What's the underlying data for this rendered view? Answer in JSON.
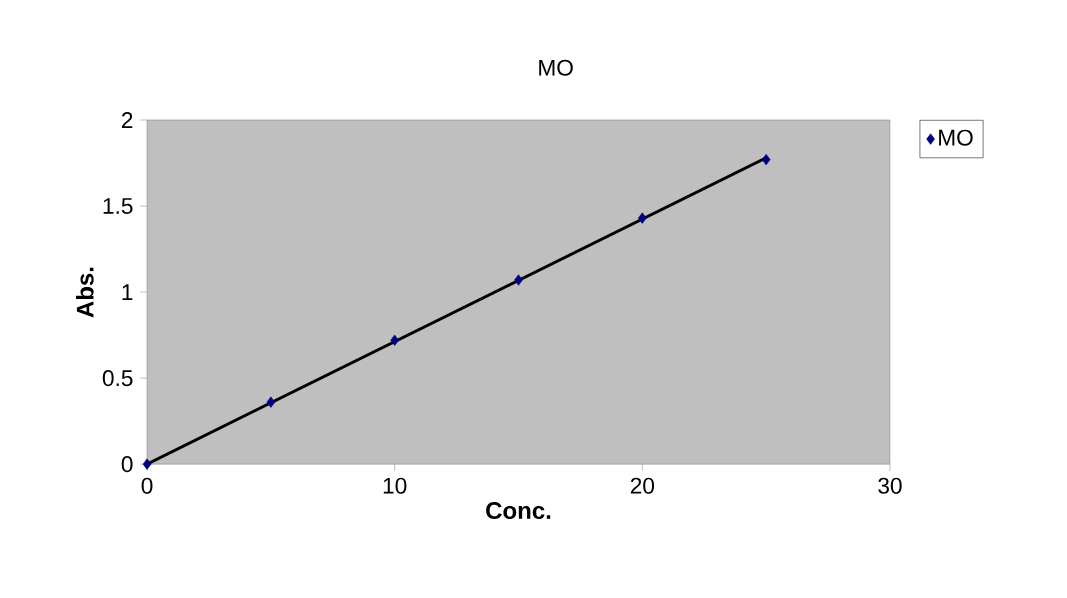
{
  "chart_data": {
    "type": "scatter",
    "title": "MO",
    "xlabel": "Conc.",
    "ylabel": "Abs.",
    "xlim": [
      0,
      30
    ],
    "ylim": [
      0,
      2
    ],
    "xticks": [
      0,
      10,
      20,
      30
    ],
    "yticks": [
      0,
      0.5,
      1,
      1.5,
      2
    ],
    "legend": "top right",
    "marker": "diamond",
    "series": [
      {
        "name": "MO",
        "color": "#000080",
        "x": [
          0,
          5,
          10,
          15,
          20,
          25
        ],
        "values": [
          0,
          0.36,
          0.72,
          1.07,
          1.43,
          1.77
        ]
      },
      {
        "type": "line",
        "color": "#000000",
        "marker": "none",
        "x": [
          0,
          25
        ],
        "values": [
          0,
          1.78
        ]
      }
    ]
  }
}
